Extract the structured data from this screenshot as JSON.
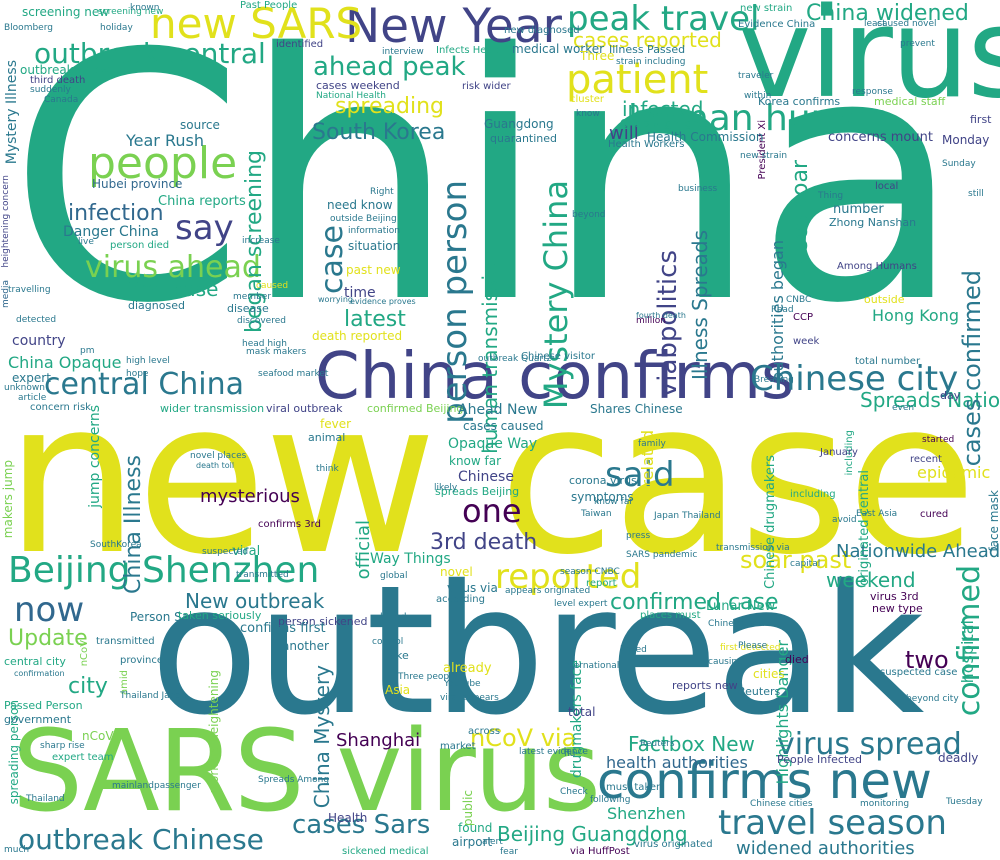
{
  "palette": [
    "#440154",
    "#414487",
    "#2a788e",
    "#22a884",
    "#7ad151",
    "#e1e11c"
  ],
  "words": {
    "china": "China",
    "new_case": "new case",
    "outbreak": "outbreak",
    "sars_virus": "SARS virus",
    "virus": "virus",
    "china_confirms": "China confirms",
    "confirms_new": "confirms new",
    "new_year": "New Year",
    "new_sars": "new SARS",
    "peak_travel": "peak travel",
    "patient": "patient",
    "people": "people",
    "human_human": "human human",
    "outbreak_central": "outbreak central",
    "ahead_peak": "ahead peak",
    "virus_ahead": "virus ahead",
    "central_china": "central China",
    "chinese_city": "Chinese city",
    "beijing_shenzhen": "Beijing Shenzhen",
    "reported": "reported",
    "said": "said",
    "one": "one",
    "now": "now",
    "travel_season": "travel season",
    "virus_spread": "virus spread",
    "outbreak_chinese": "outbreak Chinese",
    "cases_sars": "cases Sars",
    "beijing_guangdong": "Beijing Guangdong",
    "confirmed_case": "confirmed case",
    "say": "say",
    "infection": "infection",
    "first_case": "first case",
    "latest": "latest",
    "person_person": "person person",
    "mystery_china": "Mystery China",
    "case": "case",
    "confirmed": "confirmed",
    "cases_confirmed": "cases confirmed",
    "south_korea": "South Korea",
    "spreading": "spreading",
    "began_screening": "began screening",
    "china_widened": "China widened",
    "cases_reported": "cases reported",
    "infected": "infected",
    "soar_past": "soar past",
    "weekend": "weekend",
    "two": "two",
    "factbox_new": "Factbox New",
    "new_outbreak": "New outbreak",
    "update": "Update",
    "city": "city",
    "shanghai": "Shanghai",
    "ncov_via": "nCoV via",
    "health_authorities": "health authorities",
    "widened_authorities": "widened authorities",
    "shenzhen": "Shenzhen",
    "third_death": "3rd death",
    "mysterious": "mysterious",
    "official": "official",
    "nationwide_ahead": "Nationwide Ahead",
    "china_illness": "China Illness",
    "china_mystery": "China Mystery",
    "human_transmission": "human transmission",
    "via_politics": "viabpolitics",
    "illness_spreads": "Illness Spreads",
    "cases_soar": "cases soar",
    "authorities_began": "authorities began",
    "hong_kong": "Hong Kong",
    "will": "will",
    "year_rush": "Year Rush",
    "hubei_province": "Hubei province",
    "danger_china": "Danger China",
    "china_reports": "China reports",
    "china_opaque": "China Opaque",
    "country": "country",
    "total": "total",
    "chinese": "Chinese",
    "virus_via": "virus via",
    "spreads_nationwide": "Spreads Nationwide",
    "epidemic": "epidemic",
    "mask_makers": "mask makers",
    "person_sickened": "person sickened",
    "viral": "viral",
    "highlights_danger": "Highlights Danger",
    "reports_new": "reports new",
    "lunar_new": "Lunar New",
    "hospital": "hospital",
    "screening_new": "screening new",
    "outbreak_know": "outbreak know",
    "mystery_illness": "Mystery Illness",
    "past_people": "Past People",
    "medical_worker": "medical worker",
    "crisis_highlights": "Crisis Highlights",
    "health_commission": "Health Commission",
    "concerns_mount": "concerns mount",
    "monday": "Monday",
    "korea_confirms": "Korea confirms",
    "medical_staff": "medical staff",
    "guangdong": "Guangdong",
    "quarantined": "quarantined",
    "source": "source",
    "identified": "identified",
    "cases_weekend": "cases weekend",
    "risk_wider": "risk wider",
    "national_health": "National Health",
    "first": "first",
    "number": "number",
    "zhong_nanshan": "Zhong Nanshan",
    "among_humans": "Among Humans",
    "local": "local",
    "need_know": "need know",
    "situation": "situation",
    "past_new": "past new",
    "time": "time",
    "death_reported": "death reported",
    "diagnosed": "diagnosed",
    "disease": "disease",
    "related": "related",
    "million": "million",
    "outside": "outside",
    "ccp": "CCP",
    "week": "week",
    "expert": "expert",
    "concern_risk": "concern risk",
    "wider_transmission": "wider transmission",
    "viral_outbreak": "viral outbreak",
    "confirmed_beijing": "confirmed Beijing",
    "shares_chinese": "Shares Chinese",
    "ahead_new": "Ahead New",
    "cases_caused": "cases caused",
    "opaque_way": "Opaque Way",
    "know_far": "know far",
    "fever": "fever",
    "animal": "animal",
    "spreads_beijing": "spreads Beijing",
    "symptoms": "symptoms",
    "corona_virus": "corona virus",
    "chinese_drugmakers": "Chinese drugmakers",
    "january": "January",
    "recent": "recent",
    "started": "started",
    "day": "day",
    "face_mask": "face mask",
    "including": "including",
    "cured": "cured",
    "confirms_3rd": "confirms 3rd",
    "way_things": "Way Things",
    "novel": "novel",
    "died": "died",
    "cities": "cities",
    "virus_3rd": "virus 3rd",
    "new_type": "new type",
    "person_says": "Person Says",
    "taken_seriously": "taken seriously",
    "confirms_first": "confirms first",
    "another": "another",
    "central_city": "central city",
    "province": "province",
    "amid": "amid",
    "passed_person": "Passed Person",
    "government": "government",
    "ncov": "nCoV",
    "expert_team": "expert team",
    "spreading_person": "spreading person",
    "workers_heightening": "workers heightening",
    "asia": "Asia",
    "already": "already",
    "take": "take",
    "drugmakers_face": "drugmakers face",
    "across": "across",
    "market": "market",
    "found": "found",
    "airport": "airport",
    "public": "public",
    "health": "Health",
    "sickened_medical": "sickened medical",
    "via_huffpost": "via HuffPost",
    "virus_originated": "virus originated",
    "must_taken": "must taken",
    "people_infected": "People Infected",
    "deadly": "deadly",
    "reuters": "Reuters",
    "suspected_case": "suspected case",
    "jump_concerns": "jump concerns",
    "makers_jump": "makers jump",
    "originated_central": "originated central",
    "new_strain": "new strain",
    "evidence_china": "Evidence China",
    "caused_novel": "caused novel",
    "third_death_sm": "third death",
    "heightening_concern": "heightening concern",
    "bloomberg": "Bloomberg",
    "holiday": "holiday",
    "known": "known",
    "infects_health": "Infects Health",
    "illness_passed": "Illness Passed",
    "three": "Three",
    "cluster": "cluster",
    "health_workers": "Health Workers",
    "president_xi": "President Xi",
    "sunday": "Sunday",
    "suddenly": "suddenly",
    "live": "live",
    "person_died": "person died",
    "increase": "increase",
    "member": "member",
    "discovered": "discovered",
    "head_high": "head high",
    "caused": "caused",
    "media": "media",
    "travelling": "travelling",
    "detected": "detected",
    "right": "Right",
    "outside_beijing": "outside Beijing",
    "information": "information",
    "worrying": "worrying",
    "evidence_proves": "evidence proves",
    "still": "still",
    "control": "control",
    "press": "press",
    "transmitted": "transmitted",
    "southkorea": "SouthKorea",
    "global": "global",
    "according": "according",
    "linked": "linked",
    "taiwan": "Taiwan",
    "japan_thailand": "Japan Thailand",
    "seafood_market": "seafood market",
    "high_level": "high level",
    "hope": "hope",
    "total_number": "total number",
    "chinese_visitor": "Chinese visitor",
    "outbreak_quartz": "outbreak Quartz",
    "think": "think",
    "likely": "likely",
    "season_cnbc": "season CNBC",
    "transmission_via": "transmission via",
    "first_detected": "first detected",
    "report": "report",
    "places_must": "places must",
    "please": "Please",
    "causing": "causing",
    "level_expert": "level expert",
    "appears_originated": "appears originated",
    "chinese_cities": "Chinese cities",
    "monitoring": "monitoring",
    "flu": "flu",
    "mainland": "mainland",
    "thailand": "Thailand",
    "latest_evidence": "latest evidence",
    "three_people": "Three people",
    "passenger": "passenger",
    "killed": "killed",
    "east_asia": "East Asia",
    "avoid": "avoid",
    "youtube": "YouTube",
    "viral_appears": "viral appears",
    "international": "international",
    "beyond_city": "beyond city",
    "spreads_among": "Spreads Among",
    "thailand_japan": "Thailand Japan",
    "much": "much",
    "fear": "fear",
    "following": "following",
    "capital": "capital",
    "business": "business",
    "reached": "reached",
    "sharp_rise": "sharp rise",
    "cnbc": "CNBC",
    "read": "Read",
    "seen": "seen",
    "back": "back",
    "beyond": "beyond",
    "within": "within",
    "novel_places": "novel places",
    "death_toll": "death toll",
    "confirmation": "confirmation",
    "unknown": "unknown",
    "article": "article",
    "pm": "pm",
    "speaking": "speaking",
    "canada": "Canada",
    "families": "families",
    "suspected": "suspected",
    "alert": "alert",
    "check": "Check",
    "prevent": "prevent",
    "sars_pandemic": "SARS pandemic",
    "chinese_new": "Chinese new",
    "rise": "rise",
    "fourth_death": "fourth death",
    "know": "know",
    "strain_including": "strain including",
    "new_diagnosed": "new diagnosed",
    "interview": "interview",
    "response": "response",
    "thing": "Thing",
    "wuhan": "Wuhan",
    "traveler": "traveler",
    "least": "least",
    "talking": "talking",
    "breaking": "Breaking",
    "family": "family",
    "even": "even",
    "case_sm": "case",
    "source_sm": "source",
    "tuesday": "Tuesday"
  }
}
